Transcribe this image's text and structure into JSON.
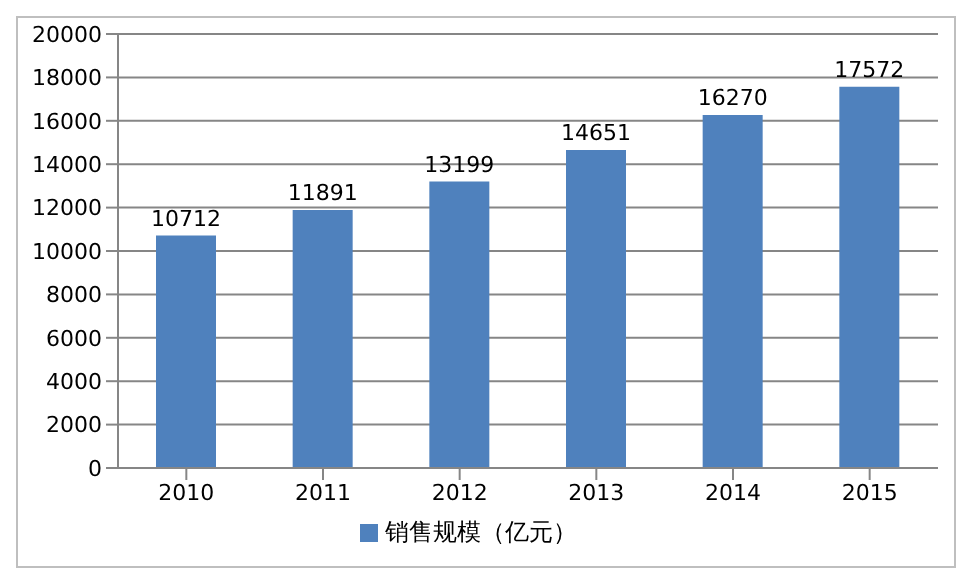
{
  "chart_data": {
    "type": "bar",
    "categories": [
      "2010",
      "2011",
      "2012",
      "2013",
      "2014",
      "2015"
    ],
    "series": [
      {
        "name": "销售规模（亿元）",
        "color": "#4f81bd",
        "values": [
          10712,
          11891,
          13199,
          14651,
          16270,
          17572
        ]
      }
    ],
    "ylim": [
      0,
      20000
    ],
    "yticks": [
      0,
      2000,
      4000,
      6000,
      8000,
      10000,
      12000,
      14000,
      16000,
      18000,
      20000
    ],
    "grid": "y",
    "legend": "bottom",
    "data_labels": true
  }
}
